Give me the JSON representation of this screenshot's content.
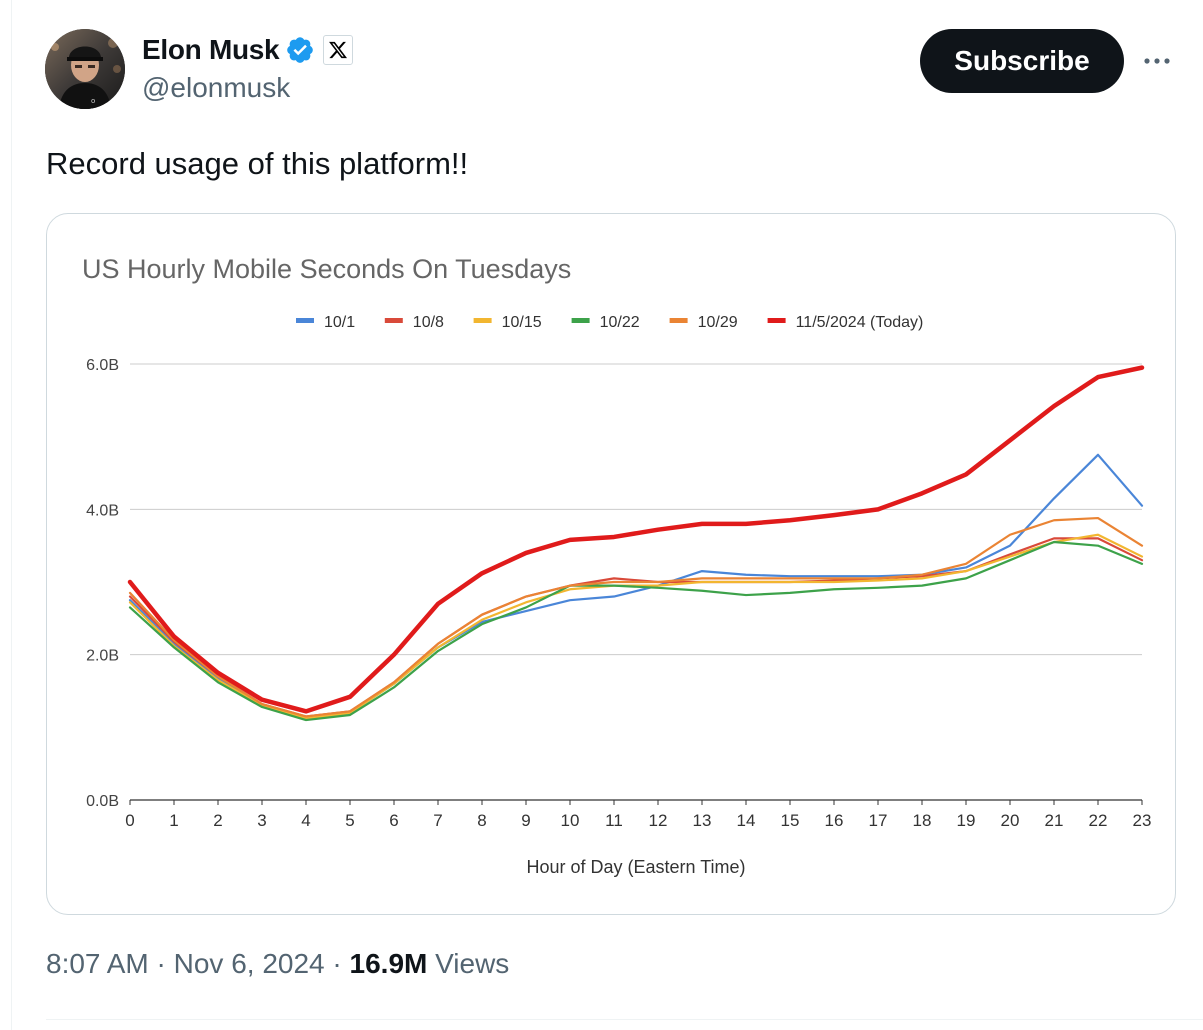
{
  "author": {
    "display_name": "Elon Musk",
    "handle": "@elonmusk",
    "verified_color": "#1d9bf0"
  },
  "actions": {
    "subscribe_label": "Subscribe",
    "more_icon": "more-horizontal-icon"
  },
  "tweet": {
    "text": "Record usage of this platform!!"
  },
  "meta": {
    "time": "8:07 AM",
    "separator": " · ",
    "date": "Nov 6, 2024",
    "views_count": "16.9M",
    "views_label": "Views"
  },
  "chart_data": {
    "type": "line",
    "title": "US Hourly Mobile Seconds On Tuesdays",
    "xlabel": "Hour of Day (Eastern Time)",
    "ylabel": "",
    "x": [
      0,
      1,
      2,
      3,
      4,
      5,
      6,
      7,
      8,
      9,
      10,
      11,
      12,
      13,
      14,
      15,
      16,
      17,
      18,
      19,
      20,
      21,
      22,
      23
    ],
    "ylim": [
      0,
      6
    ],
    "yticks": [
      "0.0B",
      "2.0B",
      "4.0B",
      "6.0B"
    ],
    "ytick_values": [
      0,
      2,
      4,
      6
    ],
    "grid": true,
    "legend_position": "top",
    "series": [
      {
        "name": "10/1",
        "color": "#4a86d8",
        "values": [
          2.75,
          2.15,
          1.68,
          1.3,
          1.12,
          1.2,
          1.6,
          2.1,
          2.45,
          2.6,
          2.75,
          2.8,
          2.95,
          3.15,
          3.1,
          3.08,
          3.08,
          3.08,
          3.1,
          3.2,
          3.5,
          4.15,
          4.75,
          4.05
        ]
      },
      {
        "name": "10/8",
        "color": "#d94a3a",
        "values": [
          2.8,
          2.18,
          1.7,
          1.32,
          1.15,
          1.22,
          1.62,
          2.15,
          2.55,
          2.8,
          2.95,
          3.05,
          3.0,
          3.0,
          3.0,
          3.0,
          3.02,
          3.05,
          3.08,
          3.15,
          3.38,
          3.6,
          3.6,
          3.3
        ]
      },
      {
        "name": "10/15",
        "color": "#f2b630",
        "values": [
          2.72,
          2.12,
          1.65,
          1.3,
          1.12,
          1.2,
          1.6,
          2.1,
          2.48,
          2.72,
          2.9,
          2.95,
          2.95,
          3.0,
          3.0,
          3.0,
          3.0,
          3.02,
          3.05,
          3.15,
          3.35,
          3.55,
          3.65,
          3.35
        ]
      },
      {
        "name": "10/22",
        "color": "#3da24a",
        "values": [
          2.65,
          2.1,
          1.62,
          1.28,
          1.1,
          1.17,
          1.55,
          2.05,
          2.42,
          2.65,
          2.95,
          2.95,
          2.92,
          2.88,
          2.82,
          2.85,
          2.9,
          2.92,
          2.95,
          3.05,
          3.3,
          3.55,
          3.5,
          3.25
        ]
      },
      {
        "name": "10/29",
        "color": "#ea8434",
        "values": [
          2.85,
          2.2,
          1.7,
          1.32,
          1.15,
          1.22,
          1.62,
          2.15,
          2.55,
          2.8,
          2.95,
          3.0,
          3.0,
          3.05,
          3.05,
          3.05,
          3.05,
          3.05,
          3.1,
          3.25,
          3.65,
          3.85,
          3.88,
          3.5
        ]
      },
      {
        "name": "11/5/2024 (Today)",
        "color": "#e01b1b",
        "values": [
          3.0,
          2.25,
          1.75,
          1.38,
          1.22,
          1.42,
          2.0,
          2.7,
          3.12,
          3.4,
          3.58,
          3.62,
          3.72,
          3.8,
          3.8,
          3.85,
          3.92,
          4.0,
          4.22,
          4.48,
          4.95,
          5.42,
          5.82,
          5.95
        ]
      }
    ]
  }
}
